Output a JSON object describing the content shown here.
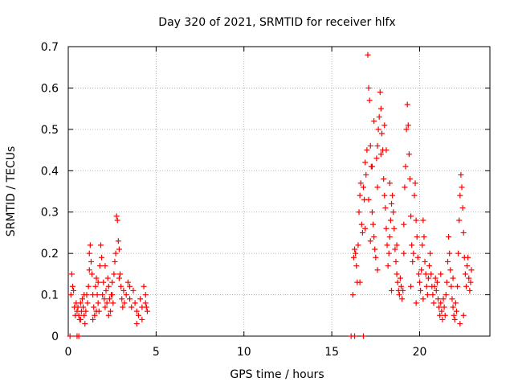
{
  "chart_data": {
    "type": "scatter",
    "title": "Day 320 of 2021, SRMTID for receiver hlfx",
    "xlabel": "GPS time / hours",
    "ylabel": "SRMTID / TECUs",
    "xlim": [
      0,
      24
    ],
    "ylim": [
      0,
      0.7
    ],
    "xticks": [
      0,
      5,
      10,
      15,
      20
    ],
    "xtick_labels": [
      "0",
      "5",
      "10",
      "15",
      "20"
    ],
    "yticks": [
      0,
      0.1,
      0.2,
      0.3,
      0.4,
      0.5,
      0.6,
      0.7
    ],
    "ytick_labels": [
      "0",
      "0.1",
      "0.2",
      "0.3",
      "0.4",
      "0.5",
      "0.6",
      "0.7"
    ],
    "grid": true,
    "marker": "+",
    "color": "#ff0000",
    "series": [
      {
        "name": "SRMTID",
        "points": [
          [
            0.1,
            0.0
          ],
          [
            0.5,
            0.0
          ],
          [
            0.6,
            0.0
          ],
          [
            0.15,
            0.1
          ],
          [
            0.2,
            0.15
          ],
          [
            0.25,
            0.12
          ],
          [
            0.3,
            0.11
          ],
          [
            0.35,
            0.07
          ],
          [
            0.4,
            0.05
          ],
          [
            0.45,
            0.08
          ],
          [
            0.5,
            0.06
          ],
          [
            0.55,
            0.07
          ],
          [
            0.6,
            0.05
          ],
          [
            0.65,
            0.04
          ],
          [
            0.7,
            0.08
          ],
          [
            0.75,
            0.06
          ],
          [
            0.8,
            0.09
          ],
          [
            0.85,
            0.07
          ],
          [
            0.9,
            0.05
          ],
          [
            0.95,
            0.03
          ],
          [
            1.0,
            0.06
          ],
          [
            1.05,
            0.1
          ],
          [
            1.1,
            0.08
          ],
          [
            1.15,
            0.12
          ],
          [
            1.2,
            0.2
          ],
          [
            1.25,
            0.22
          ],
          [
            1.3,
            0.18
          ],
          [
            1.35,
            0.15
          ],
          [
            1.4,
            0.1
          ],
          [
            1.45,
            0.07
          ],
          [
            1.5,
            0.05
          ],
          [
            1.55,
            0.12
          ],
          [
            1.6,
            0.14
          ],
          [
            1.65,
            0.1
          ],
          [
            1.7,
            0.08
          ],
          [
            1.75,
            0.06
          ],
          [
            1.8,
            0.17
          ],
          [
            1.85,
            0.22
          ],
          [
            1.9,
            0.19
          ],
          [
            1.95,
            0.1
          ],
          [
            2.0,
            0.13
          ],
          [
            2.05,
            0.09
          ],
          [
            2.1,
            0.07
          ],
          [
            2.15,
            0.11
          ],
          [
            2.2,
            0.08
          ],
          [
            2.25,
            0.14
          ],
          [
            2.3,
            0.12
          ],
          [
            2.35,
            0.09
          ],
          [
            2.4,
            0.06
          ],
          [
            2.45,
            0.1
          ],
          [
            2.5,
            0.13
          ],
          [
            2.55,
            0.08
          ],
          [
            2.6,
            0.15
          ],
          [
            2.65,
            0.18
          ],
          [
            2.7,
            0.2
          ],
          [
            2.75,
            0.29
          ],
          [
            2.8,
            0.28
          ],
          [
            2.85,
            0.23
          ],
          [
            2.9,
            0.21
          ],
          [
            2.95,
            0.15
          ],
          [
            3.0,
            0.12
          ],
          [
            3.05,
            0.09
          ],
          [
            3.1,
            0.07
          ],
          [
            3.15,
            0.11
          ],
          [
            3.2,
            0.08
          ],
          [
            3.3,
            0.1
          ],
          [
            3.4,
            0.13
          ],
          [
            3.5,
            0.09
          ],
          [
            3.6,
            0.07
          ],
          [
            3.7,
            0.11
          ],
          [
            3.8,
            0.08
          ],
          [
            3.9,
            0.06
          ],
          [
            4.0,
            0.05
          ],
          [
            4.1,
            0.09
          ],
          [
            4.2,
            0.07
          ],
          [
            4.3,
            0.12
          ],
          [
            4.4,
            0.1
          ],
          [
            4.45,
            0.07
          ],
          [
            4.5,
            0.06
          ],
          [
            4.4,
            0.08
          ],
          [
            4.2,
            0.04
          ],
          [
            3.9,
            0.03
          ],
          [
            0.7,
            0.04
          ],
          [
            1.4,
            0.04
          ],
          [
            1.6,
            0.06
          ],
          [
            2.3,
            0.05
          ],
          [
            2.5,
            0.1
          ],
          [
            2.9,
            0.14
          ],
          [
            1.2,
            0.16
          ],
          [
            3.5,
            0.12
          ],
          [
            0.9,
            0.1
          ],
          [
            1.7,
            0.13
          ],
          [
            2.1,
            0.17
          ],
          [
            16.1,
            0.0
          ],
          [
            16.3,
            0.0
          ],
          [
            16.8,
            0.0
          ],
          [
            16.2,
            0.1
          ],
          [
            16.25,
            0.19
          ],
          [
            16.3,
            0.21
          ],
          [
            16.35,
            0.2
          ],
          [
            16.4,
            0.17
          ],
          [
            16.45,
            0.13
          ],
          [
            16.5,
            0.22
          ],
          [
            16.55,
            0.3
          ],
          [
            16.6,
            0.34
          ],
          [
            16.65,
            0.37
          ],
          [
            16.7,
            0.27
          ],
          [
            16.75,
            0.25
          ],
          [
            16.8,
            0.36
          ],
          [
            16.85,
            0.33
          ],
          [
            16.9,
            0.42
          ],
          [
            16.95,
            0.39
          ],
          [
            17.0,
            0.45
          ],
          [
            17.05,
            0.68
          ],
          [
            17.1,
            0.6
          ],
          [
            17.15,
            0.57
          ],
          [
            17.2,
            0.46
          ],
          [
            17.25,
            0.41
          ],
          [
            17.3,
            0.3
          ],
          [
            17.35,
            0.27
          ],
          [
            17.4,
            0.24
          ],
          [
            17.45,
            0.21
          ],
          [
            17.5,
            0.19
          ],
          [
            17.55,
            0.43
          ],
          [
            17.6,
            0.46
          ],
          [
            17.65,
            0.5
          ],
          [
            17.7,
            0.53
          ],
          [
            17.75,
            0.59
          ],
          [
            17.8,
            0.55
          ],
          [
            17.85,
            0.49
          ],
          [
            17.9,
            0.45
          ],
          [
            17.95,
            0.38
          ],
          [
            18.0,
            0.34
          ],
          [
            18.05,
            0.31
          ],
          [
            18.1,
            0.26
          ],
          [
            18.15,
            0.22
          ],
          [
            18.2,
            0.17
          ],
          [
            18.25,
            0.2
          ],
          [
            18.3,
            0.24
          ],
          [
            18.35,
            0.28
          ],
          [
            18.4,
            0.32
          ],
          [
            18.45,
            0.34
          ],
          [
            18.5,
            0.3
          ],
          [
            18.55,
            0.26
          ],
          [
            18.6,
            0.21
          ],
          [
            18.65,
            0.18
          ],
          [
            18.7,
            0.15
          ],
          [
            18.75,
            0.13
          ],
          [
            18.8,
            0.11
          ],
          [
            18.85,
            0.1
          ],
          [
            18.9,
            0.14
          ],
          [
            18.95,
            0.12
          ],
          [
            19.0,
            0.09
          ],
          [
            19.05,
            0.11
          ],
          [
            19.1,
            0.27
          ],
          [
            19.15,
            0.36
          ],
          [
            19.2,
            0.41
          ],
          [
            19.25,
            0.5
          ],
          [
            19.3,
            0.56
          ],
          [
            19.35,
            0.51
          ],
          [
            19.4,
            0.44
          ],
          [
            19.45,
            0.38
          ],
          [
            19.5,
            0.29
          ],
          [
            19.55,
            0.22
          ],
          [
            19.6,
            0.18
          ],
          [
            19.65,
            0.2
          ],
          [
            19.7,
            0.34
          ],
          [
            19.75,
            0.37
          ],
          [
            19.8,
            0.28
          ],
          [
            19.85,
            0.24
          ],
          [
            19.9,
            0.19
          ],
          [
            19.95,
            0.15
          ],
          [
            20.0,
            0.13
          ],
          [
            20.05,
            0.11
          ],
          [
            20.1,
            0.16
          ],
          [
            20.15,
            0.22
          ],
          [
            20.2,
            0.28
          ],
          [
            20.25,
            0.24
          ],
          [
            20.3,
            0.18
          ],
          [
            20.35,
            0.15
          ],
          [
            20.4,
            0.12
          ],
          [
            20.45,
            0.1
          ],
          [
            20.5,
            0.14
          ],
          [
            20.55,
            0.17
          ],
          [
            20.6,
            0.2
          ],
          [
            20.65,
            0.15
          ],
          [
            20.7,
            0.12
          ],
          [
            20.75,
            0.1
          ],
          [
            20.8,
            0.08
          ],
          [
            20.85,
            0.12
          ],
          [
            20.9,
            0.14
          ],
          [
            20.95,
            0.11
          ],
          [
            21.0,
            0.13
          ],
          [
            21.05,
            0.09
          ],
          [
            21.1,
            0.07
          ],
          [
            21.15,
            0.05
          ],
          [
            21.2,
            0.08
          ],
          [
            21.25,
            0.06
          ],
          [
            21.3,
            0.04
          ],
          [
            21.35,
            0.09
          ],
          [
            21.4,
            0.07
          ],
          [
            21.45,
            0.05
          ],
          [
            21.5,
            0.1
          ],
          [
            21.55,
            0.13
          ],
          [
            21.6,
            0.18
          ],
          [
            21.65,
            0.24
          ],
          [
            21.7,
            0.2
          ],
          [
            21.75,
            0.16
          ],
          [
            21.8,
            0.12
          ],
          [
            21.85,
            0.09
          ],
          [
            21.9,
            0.07
          ],
          [
            21.95,
            0.05
          ],
          [
            22.0,
            0.04
          ],
          [
            22.05,
            0.08
          ],
          [
            22.1,
            0.06
          ],
          [
            22.15,
            0.12
          ],
          [
            22.2,
            0.2
          ],
          [
            22.25,
            0.28
          ],
          [
            22.3,
            0.34
          ],
          [
            22.35,
            0.39
          ],
          [
            22.4,
            0.36
          ],
          [
            22.45,
            0.31
          ],
          [
            22.5,
            0.25
          ],
          [
            22.55,
            0.19
          ],
          [
            22.6,
            0.15
          ],
          [
            22.65,
            0.12
          ],
          [
            22.7,
            0.17
          ],
          [
            22.75,
            0.19
          ],
          [
            22.8,
            0.14
          ],
          [
            22.85,
            0.11
          ],
          [
            22.9,
            0.13
          ],
          [
            22.95,
            0.16
          ],
          [
            17.3,
            0.41
          ],
          [
            17.8,
            0.44
          ],
          [
            18.3,
            0.37
          ],
          [
            17.6,
            0.36
          ],
          [
            17.2,
            0.23
          ],
          [
            18.7,
            0.22
          ],
          [
            19.1,
            0.2
          ],
          [
            16.9,
            0.26
          ],
          [
            17.4,
            0.52
          ],
          [
            18.0,
            0.51
          ],
          [
            18.1,
            0.45
          ],
          [
            17.1,
            0.33
          ],
          [
            19.5,
            0.12
          ],
          [
            20.2,
            0.09
          ],
          [
            21.2,
            0.15
          ],
          [
            22.3,
            0.03
          ],
          [
            22.5,
            0.05
          ],
          [
            21.9,
            0.14
          ],
          [
            16.6,
            0.13
          ],
          [
            17.6,
            0.16
          ],
          [
            18.4,
            0.11
          ],
          [
            19.8,
            0.08
          ]
        ]
      }
    ]
  }
}
